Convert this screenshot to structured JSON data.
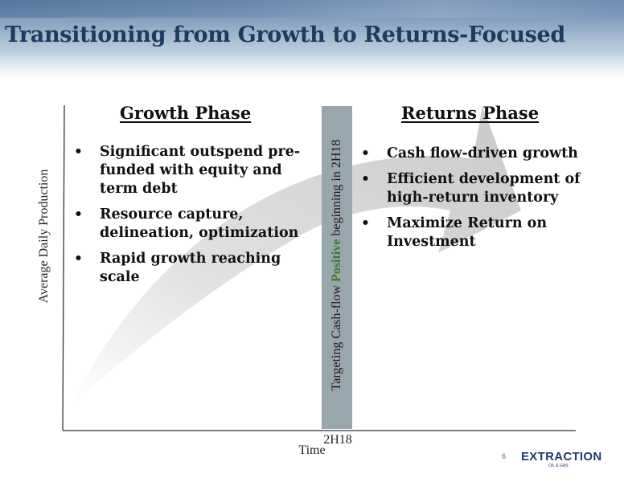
{
  "title": "Transitioning from Growth to Returns-Focused",
  "axes": {
    "ylabel": "Average Daily Production",
    "xlabel": "Time",
    "tick": "2H18"
  },
  "bar": {
    "text_before": "Targeting Cash-flow ",
    "text_highlight": "Positive",
    "text_after": " beginning in  2H18",
    "highlight_color": "#3f7a2c"
  },
  "growth": {
    "heading": "Growth Phase",
    "bullets": [
      "Significant outspend pre-funded with equity and term debt",
      "Resource capture, delineation, optimization",
      "Rapid growth reaching scale"
    ]
  },
  "returns": {
    "heading": "Returns Phase",
    "bullets": [
      "Cash flow-driven growth",
      "Efficient development of high-return inventory",
      "Maximize Return on Investment"
    ]
  },
  "footer": {
    "page_number": "6",
    "logo_text": "EXTRACTION",
    "logo_sub": "OIL & GAS"
  }
}
